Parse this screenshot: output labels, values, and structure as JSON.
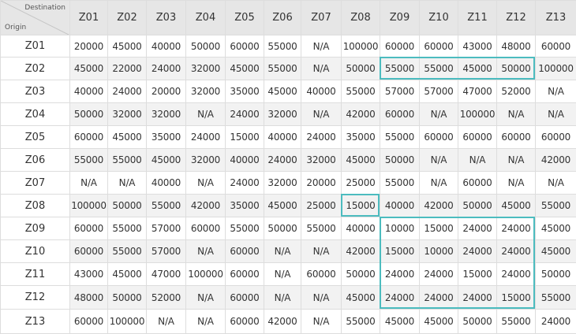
{
  "corner": {
    "destination_label": "Destination",
    "origin_label": "Origin"
  },
  "columns": [
    "Z01",
    "Z02",
    "Z03",
    "Z04",
    "Z05",
    "Z06",
    "Z07",
    "Z08",
    "Z09",
    "Z10",
    "Z11",
    "Z12",
    "Z13"
  ],
  "rows": [
    {
      "origin": "Z01",
      "values": [
        "20000",
        "45000",
        "40000",
        "50000",
        "60000",
        "55000",
        "N/A",
        "100000",
        "60000",
        "60000",
        "43000",
        "48000",
        "60000"
      ]
    },
    {
      "origin": "Z02",
      "values": [
        "45000",
        "22000",
        "24000",
        "32000",
        "45000",
        "55000",
        "N/A",
        "50000",
        "55000",
        "55000",
        "45000",
        "50000",
        "100000"
      ]
    },
    {
      "origin": "Z03",
      "values": [
        "40000",
        "24000",
        "20000",
        "32000",
        "35000",
        "45000",
        "40000",
        "55000",
        "57000",
        "57000",
        "47000",
        "52000",
        "N/A"
      ]
    },
    {
      "origin": "Z04",
      "values": [
        "50000",
        "32000",
        "32000",
        "N/A",
        "24000",
        "32000",
        "N/A",
        "42000",
        "60000",
        "N/A",
        "100000",
        "N/A",
        "N/A"
      ]
    },
    {
      "origin": "Z05",
      "values": [
        "60000",
        "45000",
        "35000",
        "24000",
        "15000",
        "40000",
        "24000",
        "35000",
        "55000",
        "60000",
        "60000",
        "60000",
        "60000"
      ]
    },
    {
      "origin": "Z06",
      "values": [
        "55000",
        "55000",
        "45000",
        "32000",
        "40000",
        "24000",
        "32000",
        "45000",
        "50000",
        "N/A",
        "N/A",
        "N/A",
        "42000"
      ]
    },
    {
      "origin": "Z07",
      "values": [
        "N/A",
        "N/A",
        "40000",
        "N/A",
        "24000",
        "32000",
        "20000",
        "25000",
        "55000",
        "N/A",
        "60000",
        "N/A",
        "N/A"
      ]
    },
    {
      "origin": "Z08",
      "values": [
        "100000",
        "50000",
        "55000",
        "42000",
        "35000",
        "45000",
        "25000",
        "15000",
        "40000",
        "42000",
        "50000",
        "45000",
        "55000"
      ]
    },
    {
      "origin": "Z09",
      "values": [
        "60000",
        "55000",
        "57000",
        "60000",
        "55000",
        "50000",
        "55000",
        "40000",
        "10000",
        "15000",
        "24000",
        "24000",
        "45000"
      ]
    },
    {
      "origin": "Z10",
      "values": [
        "60000",
        "55000",
        "57000",
        "N/A",
        "60000",
        "N/A",
        "N/A",
        "42000",
        "15000",
        "10000",
        "24000",
        "24000",
        "45000"
      ]
    },
    {
      "origin": "Z11",
      "values": [
        "43000",
        "45000",
        "47000",
        "100000",
        "60000",
        "N/A",
        "60000",
        "50000",
        "24000",
        "24000",
        "15000",
        "24000",
        "50000"
      ]
    },
    {
      "origin": "Z12",
      "values": [
        "48000",
        "50000",
        "52000",
        "N/A",
        "60000",
        "N/A",
        "N/A",
        "45000",
        "24000",
        "24000",
        "24000",
        "15000",
        "55000"
      ]
    },
    {
      "origin": "Z13",
      "values": [
        "60000",
        "100000",
        "N/A",
        "N/A",
        "60000",
        "42000",
        "N/A",
        "55000",
        "45000",
        "45000",
        "50000",
        "55000",
        "24000"
      ]
    }
  ],
  "highlight_color": "#4cbcbf",
  "highlights": [
    {
      "name": "highlight-z02-z09-z12",
      "row_start": 2,
      "row_end": 2,
      "col_start": 9,
      "col_end": 12
    },
    {
      "name": "highlight-z08-z08",
      "row_start": 8,
      "row_end": 8,
      "col_start": 8,
      "col_end": 8
    },
    {
      "name": "highlight-z09-z12-block",
      "row_start": 9,
      "row_end": 12,
      "col_start": 9,
      "col_end": 12
    }
  ]
}
